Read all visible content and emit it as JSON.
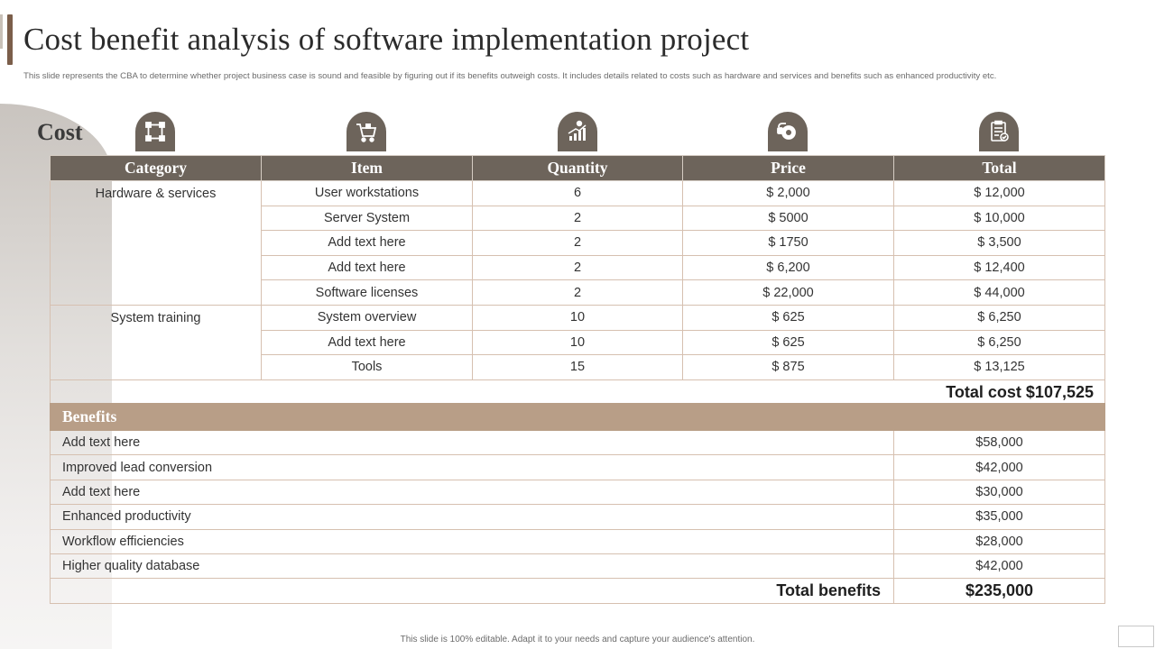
{
  "title": "Cost benefit analysis of software implementation project",
  "subtitle": "This slide represents the CBA to determine whether project business case is sound and feasible by figuring out if its benefits outweigh costs. It includes details related to costs such as hardware and services and benefits such as enhanced productivity etc.",
  "cost_label": "Cost",
  "icons": [
    "network-icon",
    "cart-icon",
    "growth-chart-icon",
    "gear-hand-icon",
    "checklist-icon"
  ],
  "cost_table": {
    "headers": [
      "Category",
      "Item",
      "Quantity",
      "Price",
      "Total"
    ],
    "rows": [
      {
        "category": "Hardware & services",
        "item": "User workstations",
        "quantity": "6",
        "price": "$ 2,000",
        "total": "$ 12,000"
      },
      {
        "category": "",
        "item": "Server System",
        "quantity": "2",
        "price": "$ 5000",
        "total": "$ 10,000"
      },
      {
        "category": "",
        "item": "Add text here",
        "quantity": "2",
        "price": "$ 1750",
        "total": "$ 3,500"
      },
      {
        "category": "",
        "item": "Add text here",
        "quantity": "2",
        "price": "$ 6,200",
        "total": "$ 12,400"
      },
      {
        "category": "",
        "item": "Software licenses",
        "quantity": "2",
        "price": "$ 22,000",
        "total": "$ 44,000"
      },
      {
        "category": "System training",
        "item": "System overview",
        "quantity": "10",
        "price": "$ 625",
        "total": "$ 6,250"
      },
      {
        "category": "",
        "item": "Add text here",
        "quantity": "10",
        "price": "$ 625",
        "total": "$ 6,250"
      },
      {
        "category": "",
        "item": "Tools",
        "quantity": "15",
        "price": "$ 875",
        "total": "$ 13,125"
      }
    ],
    "total_label": "Total cost $107,525"
  },
  "benefits_table": {
    "header": "Benefits",
    "rows": [
      {
        "name": "Add text here",
        "value": "$58,000"
      },
      {
        "name": "Improved lead conversion",
        "value": "$42,000"
      },
      {
        "name": "Add text here",
        "value": "$30,000"
      },
      {
        "name": "Enhanced productivity",
        "value": "$35,000"
      },
      {
        "name": "Workflow efficiencies",
        "value": "$28,000"
      },
      {
        "name": "Higher quality database",
        "value": "$42,000"
      }
    ],
    "total_label": "Total benefits",
    "total_value": "$235,000"
  },
  "footer": "This slide is 100% editable. Adapt it to your needs and capture your audience's attention.",
  "colors": {
    "header_dark": "#6d645b",
    "header_benefits": "#b89e87",
    "accent": "#7b5e4a"
  }
}
